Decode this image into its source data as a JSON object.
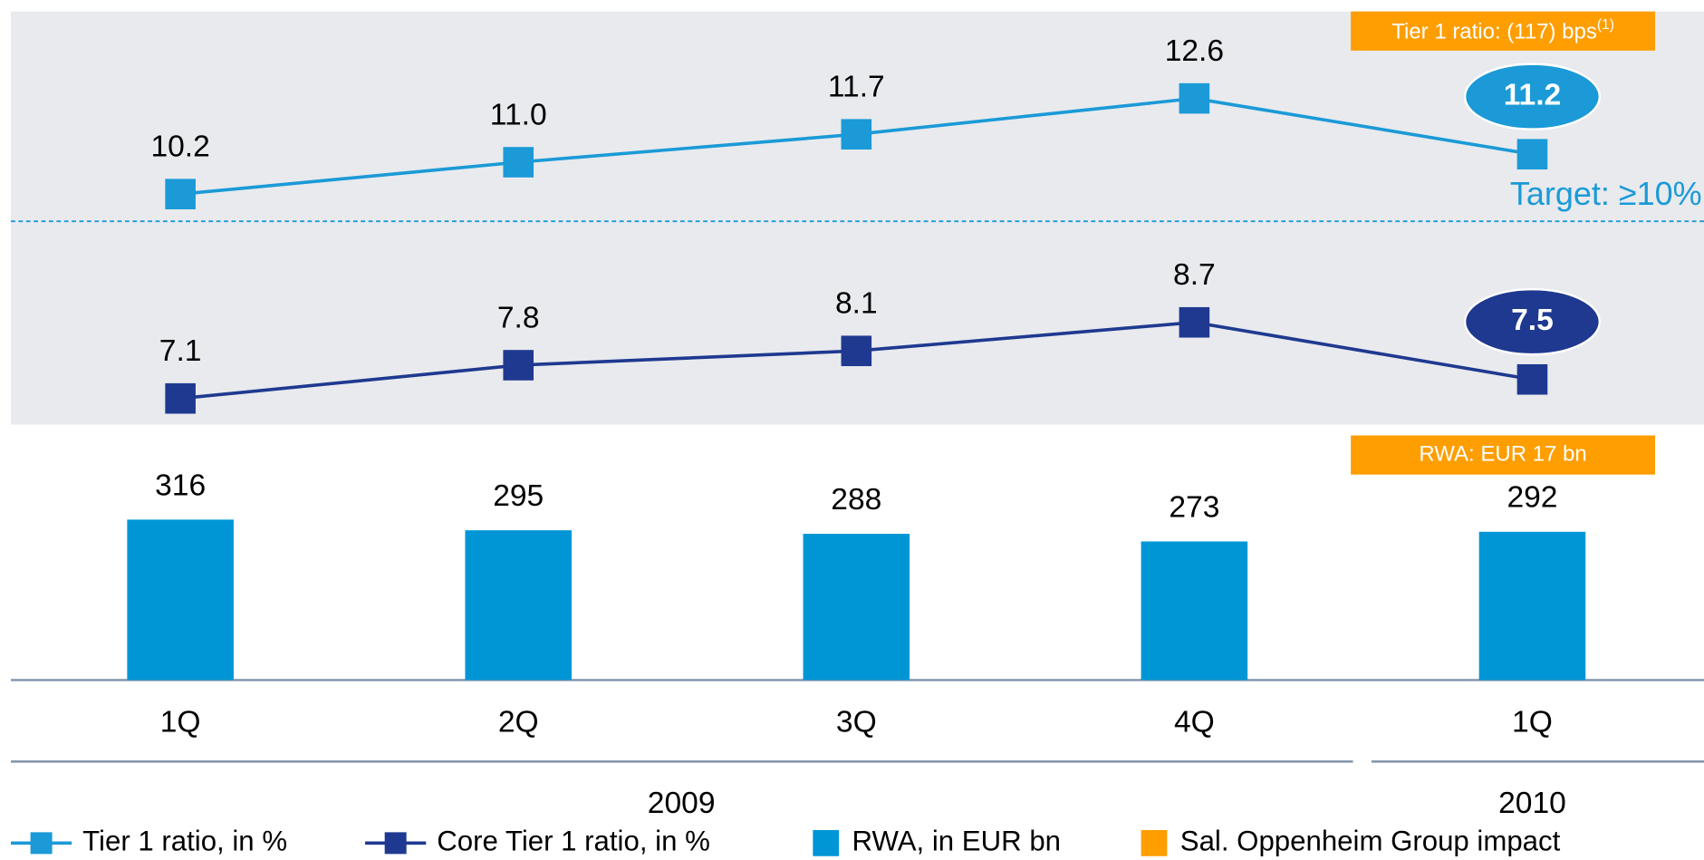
{
  "chart_data": {
    "type": "combo",
    "categories": [
      "1Q",
      "2Q",
      "3Q",
      "4Q",
      "1Q"
    ],
    "years": [
      "2009",
      "2010"
    ],
    "series": [
      {
        "name": "Tier 1 ratio, in %",
        "type": "line",
        "color": "#1b9ad7",
        "values": [
          10.2,
          11.0,
          11.7,
          12.6,
          11.2
        ],
        "value_labels": [
          "10.2",
          "11.0",
          "11.7",
          "12.6",
          "11.2"
        ]
      },
      {
        "name": "Core Tier 1 ratio, in %",
        "type": "line",
        "color": "#1f3990",
        "values": [
          7.1,
          7.8,
          8.1,
          8.7,
          7.5
        ],
        "value_labels": [
          "7.1",
          "7.8",
          "8.1",
          "8.7",
          "7.5"
        ]
      },
      {
        "name": "RWA, in EUR bn",
        "type": "bar",
        "color": "#0096d6",
        "values": [
          316,
          295,
          288,
          273,
          292
        ]
      }
    ],
    "impact": {
      "name": "Sal. Oppenheim Group impact",
      "color": "#ff9e00"
    },
    "annotations": {
      "tier1_impact": "Tier 1 ratio: (117) bps",
      "tier1_impact_note": "(1)",
      "rwa_impact": "RWA:  EUR 17 bn",
      "target": "Target: ≥10%"
    }
  }
}
